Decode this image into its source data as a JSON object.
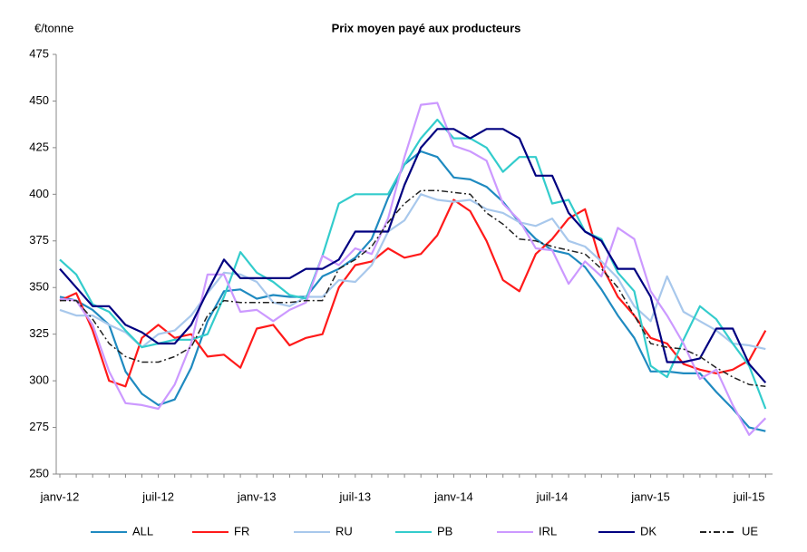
{
  "chart_data": {
    "type": "line",
    "title": "Prix moyen payé aux producteurs",
    "y_label": "€/tonne",
    "categories": [
      "janv-12",
      null,
      null,
      null,
      null,
      null,
      "juil-12",
      null,
      null,
      null,
      null,
      null,
      "janv-13",
      null,
      null,
      null,
      null,
      null,
      "juil-13",
      null,
      null,
      null,
      null,
      null,
      "janv-14",
      null,
      null,
      null,
      null,
      null,
      "juil-14",
      null,
      null,
      null,
      null,
      null,
      "janv-15",
      null,
      null,
      null,
      null,
      null,
      "juil-15",
      null
    ],
    "ylim": [
      250,
      475
    ],
    "yticks": [
      250,
      275,
      300,
      325,
      350,
      375,
      400,
      425,
      450,
      475
    ],
    "grid": false,
    "legend": "bottom",
    "series": [
      {
        "name": "ALL",
        "color": "#1f8ac0",
        "dash": "solid",
        "values": [
          345,
          343,
          338,
          330,
          305,
          293,
          287,
          290,
          307,
          332,
          348,
          349,
          344,
          346,
          345,
          345,
          356,
          360,
          366,
          376,
          398,
          416,
          423,
          420,
          409,
          408,
          404,
          396,
          385,
          376,
          370,
          368,
          361,
          349,
          335,
          323,
          305,
          305,
          304,
          304,
          294,
          285,
          275,
          273
        ]
      },
      {
        "name": "FR",
        "color": "#ff1a1a",
        "dash": "solid",
        "values": [
          343,
          347,
          327,
          300,
          297,
          323,
          330,
          323,
          325,
          313,
          314,
          307,
          328,
          330,
          319,
          323,
          325,
          350,
          362,
          364,
          371,
          366,
          368,
          378,
          397,
          391,
          375,
          354,
          348,
          368,
          376,
          387,
          392,
          362,
          345,
          335,
          323,
          320,
          309,
          306,
          304,
          306,
          311,
          327
        ]
      },
      {
        "name": "RU",
        "color": "#a8c8ec",
        "dash": "solid",
        "values": [
          338,
          335,
          335,
          330,
          326,
          318,
          325,
          327,
          335,
          347,
          358,
          357,
          353,
          342,
          340,
          345,
          345,
          354,
          353,
          362,
          380,
          386,
          400,
          397,
          396,
          397,
          392,
          390,
          385,
          383,
          387,
          375,
          372,
          364,
          355,
          340,
          332,
          356,
          337,
          332,
          327,
          320,
          319,
          317
        ]
      },
      {
        "name": "PB",
        "color": "#33cccc",
        "dash": "solid",
        "values": [
          365,
          357,
          341,
          337,
          327,
          318,
          320,
          322,
          322,
          325,
          345,
          369,
          358,
          353,
          346,
          344,
          367,
          395,
          400,
          400,
          400,
          416,
          430,
          440,
          430,
          430,
          425,
          412,
          420,
          420,
          395,
          397,
          380,
          376,
          358,
          348,
          308,
          302,
          322,
          340,
          333,
          320,
          308,
          285
        ]
      },
      {
        "name": "IRL",
        "color": "#cc99ff",
        "dash": "solid",
        "values": [
          344,
          343,
          330,
          305,
          288,
          287,
          285,
          298,
          320,
          357,
          357,
          337,
          338,
          332,
          338,
          342,
          367,
          362,
          371,
          368,
          387,
          420,
          448,
          449,
          426,
          423,
          418,
          395,
          386,
          371,
          370,
          352,
          364,
          356,
          382,
          376,
          348,
          335,
          320,
          301,
          306,
          287,
          271,
          280
        ]
      },
      {
        "name": "DK",
        "color": "#000080",
        "dash": "solid",
        "values": [
          360,
          350,
          340,
          340,
          330,
          326,
          320,
          320,
          330,
          348,
          365,
          355,
          355,
          355,
          355,
          360,
          360,
          365,
          380,
          380,
          380,
          405,
          425,
          435,
          435,
          430,
          435,
          435,
          430,
          410,
          410,
          390,
          380,
          375,
          360,
          360,
          345,
          310,
          310,
          312,
          328,
          328,
          309,
          299
        ]
      },
      {
        "name": "UE",
        "color": "#222222",
        "dash": "dashdot",
        "values": [
          343,
          343,
          333,
          320,
          313,
          310,
          310,
          313,
          318,
          335,
          343,
          342,
          342,
          342,
          342,
          343,
          343,
          360,
          365,
          372,
          385,
          395,
          402,
          402,
          401,
          400,
          390,
          384,
          376,
          375,
          372,
          370,
          368,
          360,
          350,
          335,
          320,
          318,
          317,
          313,
          307,
          302,
          298,
          297
        ]
      }
    ]
  }
}
